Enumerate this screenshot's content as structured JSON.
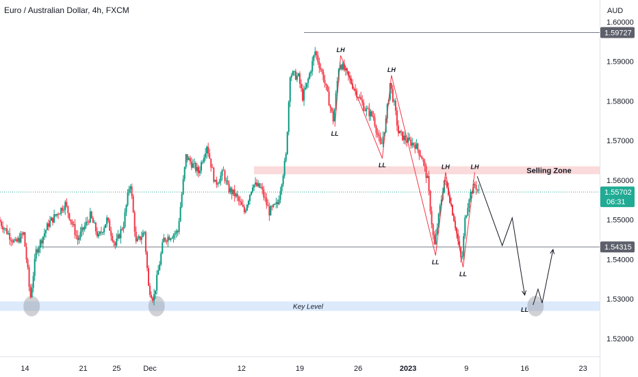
{
  "header": {
    "title": "Euro / Australian Dollar, 4h, FXCM"
  },
  "colors": {
    "up": "#089981",
    "down": "#f23645",
    "grid_line": "#787b86",
    "selling_zone": "#f9d3d4",
    "key_level": "#d6e6fb",
    "current_price_bg": "#22ab94",
    "dotted_line": "#22ab94",
    "axis_text": "#131722",
    "label_bg": "#5d606b"
  },
  "chart_data": {
    "type": "candlestick",
    "currency": "AUD",
    "y_ticks": [
      "1.60000",
      "1.59000",
      "1.58000",
      "1.57000",
      "1.56000",
      "1.55000",
      "1.54000",
      "1.53000",
      "1.52000"
    ],
    "ylim": [
      1.5155,
      1.6055
    ],
    "x_ticks": [
      {
        "label": "14",
        "x": 0
      },
      {
        "label": "21",
        "x": 7
      },
      {
        "label": "25",
        "x": 11
      },
      {
        "label": "Dec",
        "x": 15
      },
      {
        "label": "12",
        "x": 26
      },
      {
        "label": "19",
        "x": 33
      },
      {
        "label": "26",
        "x": 40
      },
      {
        "label": "2023",
        "x": 46,
        "bold": true
      },
      {
        "label": "9",
        "x": 53
      },
      {
        "label": "16",
        "x": 60
      },
      {
        "label": "23",
        "x": 67
      }
    ],
    "xlim": [
      -3,
      69
    ],
    "price_labels": [
      {
        "value": "1.59727",
        "price": 1.59727,
        "style": "grey"
      },
      {
        "value": "1.55702",
        "price": 1.55702,
        "style": "green",
        "sub": "06:31"
      },
      {
        "value": "1.54315",
        "price": 1.54315,
        "style": "grey"
      }
    ],
    "zones": [
      {
        "label": "Selling Zone",
        "from": 1.5615,
        "to": 1.5635,
        "x_start": 27.5
      },
      {
        "label": "Key Level",
        "from": 1.527,
        "to": 1.5294,
        "x_start": -3
      }
    ],
    "horizontal_lines": [
      {
        "price": 1.59727,
        "x_start": 33.5
      },
      {
        "price": 1.54315,
        "x_start": 1.5
      }
    ],
    "pivots": [
      {
        "label": "LH",
        "t": 37.9,
        "price": 1.5915,
        "pos": "above"
      },
      {
        "label": "LL",
        "t": 37.2,
        "price": 1.5735,
        "pos": "below"
      },
      {
        "label": "LH",
        "t": 44.0,
        "price": 1.5865,
        "pos": "above"
      },
      {
        "label": "LL",
        "t": 42.9,
        "price": 1.5655,
        "pos": "below"
      },
      {
        "label": "LH",
        "t": 50.5,
        "price": 1.562,
        "pos": "above"
      },
      {
        "label": "LL",
        "t": 49.3,
        "price": 1.541,
        "pos": "below"
      },
      {
        "label": "LH",
        "t": 54.0,
        "price": 1.562,
        "pos": "above"
      },
      {
        "label": "LL",
        "t": 52.6,
        "price": 1.538,
        "pos": "below"
      },
      {
        "label": "LL",
        "t": 60.0,
        "price": 1.529,
        "pos": "below"
      }
    ],
    "swing_path": [
      [
        37.2,
        1.5735
      ],
      [
        37.9,
        1.5915
      ],
      [
        42.9,
        1.5655
      ],
      [
        44.0,
        1.5865
      ],
      [
        49.3,
        1.541
      ],
      [
        50.5,
        1.562
      ],
      [
        52.6,
        1.538
      ],
      [
        54.0,
        1.562
      ]
    ],
    "projection_path": [
      [
        54.3,
        1.561
      ],
      [
        57.3,
        1.5435
      ],
      [
        58.5,
        1.5505
      ],
      [
        60.0,
        1.531
      ]
    ],
    "projection_path2": [
      [
        61.0,
        1.5285
      ],
      [
        61.6,
        1.5325
      ],
      [
        62.1,
        1.529
      ],
      [
        63.4,
        1.5425
      ]
    ],
    "circles": [
      {
        "t": 0.8,
        "price": 1.5282
      },
      {
        "t": 15.8,
        "price": 1.5282
      },
      {
        "t": 61.3,
        "price": 1.5282
      }
    ],
    "anchors": [
      [
        -3,
        1.55
      ],
      [
        -1,
        1.544
      ],
      [
        0,
        1.5465
      ],
      [
        0.5,
        1.537
      ],
      [
        0.8,
        1.53
      ],
      [
        1.5,
        1.542
      ],
      [
        3,
        1.549
      ],
      [
        5,
        1.554
      ],
      [
        6.5,
        1.545
      ],
      [
        8,
        1.551
      ],
      [
        9,
        1.5455
      ],
      [
        10,
        1.55
      ],
      [
        11,
        1.5435
      ],
      [
        12,
        1.549
      ],
      [
        12.8,
        1.56
      ],
      [
        13.5,
        1.544
      ],
      [
        14.5,
        1.547
      ],
      [
        15,
        1.533
      ],
      [
        15.6,
        1.53
      ],
      [
        16.8,
        1.545
      ],
      [
        18.5,
        1.547
      ],
      [
        19.5,
        1.566
      ],
      [
        21,
        1.562
      ],
      [
        22,
        1.569
      ],
      [
        23,
        1.559
      ],
      [
        24,
        1.562
      ],
      [
        24.5,
        1.558
      ],
      [
        25.5,
        1.556
      ],
      [
        26.5,
        1.552
      ],
      [
        27.5,
        1.559
      ],
      [
        28.5,
        1.558
      ],
      [
        29.5,
        1.552
      ],
      [
        30.5,
        1.554
      ],
      [
        31.5,
        1.566
      ],
      [
        32,
        1.587
      ],
      [
        33,
        1.586
      ],
      [
        33.5,
        1.581
      ],
      [
        34,
        1.584
      ],
      [
        35,
        1.5925
      ],
      [
        36,
        1.586
      ],
      [
        37.2,
        1.575
      ],
      [
        37.9,
        1.59
      ],
      [
        39,
        1.586
      ],
      [
        40,
        1.582
      ],
      [
        41,
        1.578
      ],
      [
        42,
        1.576
      ],
      [
        42.9,
        1.568
      ],
      [
        43.5,
        1.575
      ],
      [
        44,
        1.5845
      ],
      [
        44.5,
        1.579
      ],
      [
        45,
        1.572
      ],
      [
        46,
        1.57
      ],
      [
        47,
        1.569
      ],
      [
        47.8,
        1.566
      ],
      [
        48.5,
        1.56
      ],
      [
        49.3,
        1.543
      ],
      [
        50,
        1.553
      ],
      [
        50.5,
        1.56
      ],
      [
        51,
        1.557
      ],
      [
        51.8,
        1.549
      ],
      [
        52.6,
        1.539
      ],
      [
        53,
        1.55
      ],
      [
        53.5,
        1.556
      ],
      [
        54.2,
        1.559
      ],
      [
        54.6,
        1.557
      ]
    ]
  }
}
